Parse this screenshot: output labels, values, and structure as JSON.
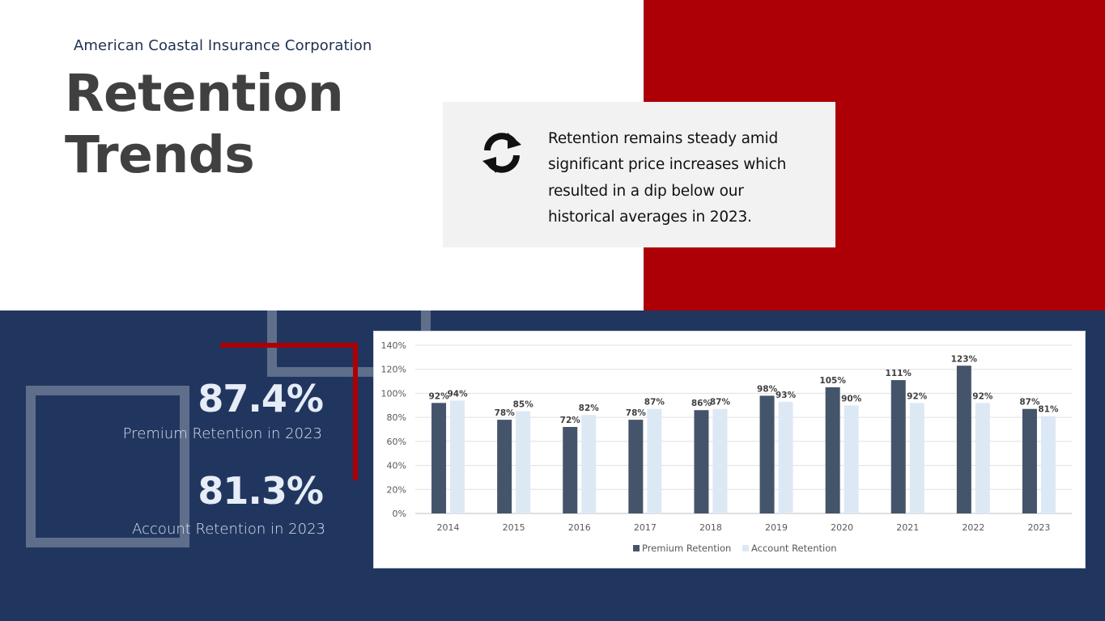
{
  "header": {
    "company": "American Coastal Insurance Corporation",
    "title_line1": "Retention",
    "title_line2": "Trends"
  },
  "callout": {
    "icon": "refresh-icon",
    "lines": [
      "Retention remains steady amid",
      "significant price increases which",
      "resulted in a dip below our",
      "historical averages in 2023."
    ]
  },
  "kpis": [
    {
      "value": "87.4%",
      "label": "Premium Retention in 2023"
    },
    {
      "value": "81.3%",
      "label": "Account Retention in 2023"
    }
  ],
  "colors": {
    "red": "#ac0006",
    "navy": "#21365f",
    "premium_bar": "#44546a",
    "account_bar": "#dde8f5"
  },
  "chart_data": {
    "type": "bar",
    "title": "",
    "xlabel": "",
    "ylabel": "",
    "categories": [
      "2014",
      "2015",
      "2016",
      "2017",
      "2018",
      "2019",
      "2020",
      "2021",
      "2022",
      "2023"
    ],
    "series": [
      {
        "name": "Premium Retention",
        "color": "#44546a",
        "values": [
          92,
          78,
          72,
          78,
          86,
          98,
          105,
          111,
          123,
          87
        ],
        "labels": [
          "92%",
          "78%",
          "72%",
          "78%",
          "86%",
          "98%",
          "105%",
          "111%",
          "123%",
          "87%"
        ]
      },
      {
        "name": "Account Retention",
        "color": "#dde8f5",
        "values": [
          94,
          85,
          82,
          87,
          87,
          93,
          90,
          92,
          92,
          81
        ],
        "labels": [
          "94%",
          "85%",
          "82%",
          "87%",
          "87%",
          "93%",
          "90%",
          "92%",
          "92%",
          "81%"
        ]
      }
    ],
    "ylim": [
      0,
      140
    ],
    "yticks": [
      0,
      20,
      40,
      60,
      80,
      100,
      120,
      140
    ],
    "ytick_labels": [
      "0%",
      "20%",
      "40%",
      "60%",
      "80%",
      "100%",
      "120%",
      "140%"
    ],
    "grid": true,
    "legend": "bottom"
  }
}
